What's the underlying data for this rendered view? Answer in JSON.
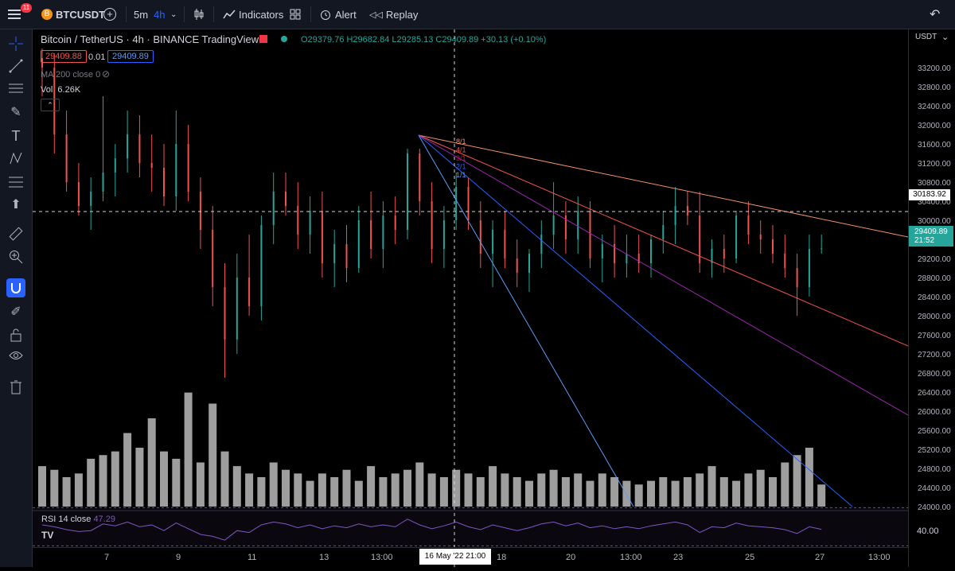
{
  "toolbar": {
    "notif_count": "11",
    "symbol": "BTCUSDT",
    "interval_a": "5m",
    "interval_b": "4h",
    "indicators": "Indicators",
    "alert": "Alert",
    "replay": "Replay"
  },
  "legend": {
    "title": "Bitcoin / TetherUS · 4h · BINANCE  TradingView",
    "ohlc": "O29379.76 H29682.84 L29285.13 C29409.89 +30.13 (+0.10%)",
    "bid": "29409.88",
    "spread": "0.01",
    "ask": "29409.89",
    "ma": "MA 200 close 0",
    "vol_label": "Vol",
    "vol_value": "6.26K",
    "rsi_label": "RSI 14 close",
    "rsi_value": "47.29",
    "rsi_axis": "40.00"
  },
  "price_axis": {
    "currency": "USDT",
    "ticks": [
      "33200.00",
      "32800.00",
      "32400.00",
      "32000.00",
      "31600.00",
      "31200.00",
      "30800.00",
      "30400.00",
      "30000.00",
      "29600.00",
      "29200.00",
      "28800.00",
      "28400.00",
      "28000.00",
      "27600.00",
      "27200.00",
      "26800.00",
      "26400.00",
      "26000.00",
      "25600.00",
      "25200.00",
      "24800.00",
      "24400.00",
      "24000.00"
    ],
    "crosshair_price": "30183.92",
    "last_price": "29409.89",
    "countdown": "21:52"
  },
  "time_axis": {
    "ticks": [
      "7",
      "9",
      "11",
      "13",
      "13:00",
      "18",
      "20",
      "13:00",
      "23",
      "25",
      "27",
      "13:00"
    ],
    "crosshair_time": "16 May '22  21:00"
  },
  "fan_labels": [
    "8/1",
    "4/1",
    "3/1",
    "2/1",
    "1/1"
  ],
  "colors": {
    "up": "#26a69a",
    "down": "#ef5350",
    "accent": "#2962ff"
  },
  "chart_data": {
    "type": "candlestick",
    "y_range": [
      23800,
      33500
    ],
    "candles": [
      [
        33400,
        33600,
        32600,
        33200
      ],
      [
        33200,
        33500,
        31400,
        31800
      ],
      [
        31800,
        32300,
        30600,
        30800
      ],
      [
        30800,
        31200,
        30100,
        30300
      ],
      [
        30300,
        30900,
        29800,
        30600
      ],
      [
        30600,
        32600,
        30400,
        31000
      ],
      [
        31000,
        31600,
        30500,
        31300
      ],
      [
        31300,
        32300,
        31000,
        31800
      ],
      [
        31800,
        32200,
        30900,
        31200
      ],
      [
        31200,
        31800,
        30600,
        31100
      ],
      [
        31100,
        31600,
        30300,
        30500
      ],
      [
        30500,
        32300,
        30200,
        31600
      ],
      [
        31600,
        32000,
        30400,
        30600
      ],
      [
        30600,
        30900,
        29400,
        29800
      ],
      [
        29800,
        30300,
        28200,
        28600
      ],
      [
        28600,
        29100,
        26700,
        27500
      ],
      [
        27500,
        29300,
        27200,
        28800
      ],
      [
        28800,
        29700,
        28000,
        28200
      ],
      [
        28200,
        30100,
        27900,
        29900
      ],
      [
        29900,
        31000,
        29500,
        30600
      ],
      [
        30600,
        31000,
        30100,
        30300
      ],
      [
        30300,
        30800,
        29400,
        29700
      ],
      [
        29700,
        30500,
        29300,
        30200
      ],
      [
        30200,
        30600,
        28800,
        29100
      ],
      [
        29100,
        29800,
        28600,
        29500
      ],
      [
        29500,
        29900,
        28700,
        29000
      ],
      [
        29000,
        30300,
        28900,
        30000
      ],
      [
        30000,
        30600,
        29200,
        29400
      ],
      [
        29400,
        30400,
        29000,
        30100
      ],
      [
        30100,
        30500,
        29500,
        29800
      ],
      [
        29800,
        31500,
        29600,
        31400
      ],
      [
        31400,
        31500,
        30100,
        30400
      ],
      [
        30400,
        30800,
        29100,
        29400
      ],
      [
        29400,
        30300,
        29000,
        30000
      ],
      [
        30000,
        31000,
        29800,
        30700
      ],
      [
        30700,
        30900,
        29800,
        30000
      ],
      [
        30000,
        30400,
        29000,
        29300
      ],
      [
        29300,
        30000,
        28600,
        29800
      ],
      [
        29800,
        30200,
        29000,
        29200
      ],
      [
        29200,
        29600,
        28600,
        28900
      ],
      [
        28900,
        29400,
        28500,
        29300
      ],
      [
        29300,
        30000,
        29000,
        29700
      ],
      [
        29700,
        30800,
        29400,
        30100
      ],
      [
        30100,
        30400,
        29300,
        29600
      ],
      [
        29600,
        30500,
        29300,
        30200
      ],
      [
        30200,
        30400,
        29000,
        29200
      ],
      [
        29200,
        29700,
        28700,
        29500
      ],
      [
        29500,
        29900,
        28800,
        29100
      ],
      [
        29100,
        29700,
        28800,
        29300
      ],
      [
        29300,
        29700,
        28900,
        29100
      ],
      [
        29100,
        29700,
        28800,
        29600
      ],
      [
        29600,
        30200,
        29300,
        29900
      ],
      [
        29900,
        30700,
        29500,
        30300
      ],
      [
        30300,
        30600,
        29900,
        30100
      ],
      [
        30100,
        30600,
        28900,
        29100
      ],
      [
        29100,
        29600,
        28800,
        29400
      ],
      [
        29400,
        29700,
        28900,
        29200
      ],
      [
        29200,
        30200,
        29100,
        30100
      ],
      [
        30100,
        30400,
        29500,
        29700
      ],
      [
        29700,
        30000,
        29300,
        29600
      ],
      [
        29600,
        29900,
        29100,
        29300
      ],
      [
        29300,
        29700,
        28800,
        29000
      ],
      [
        29000,
        29300,
        28000,
        28600
      ],
      [
        28600,
        29700,
        28400,
        29400
      ],
      [
        29400,
        29700,
        29300,
        29410
      ]
    ],
    "volume_range_k": [
      0,
      32
    ],
    "volume": [
      11,
      10,
      8,
      9,
      13,
      14,
      15,
      20,
      16,
      24,
      15,
      13,
      31,
      12,
      28,
      15,
      11,
      9,
      8,
      12,
      10,
      9,
      7,
      9,
      8,
      10,
      7,
      11,
      8,
      9,
      10,
      12,
      9,
      8,
      10,
      9,
      8,
      11,
      9,
      8,
      7,
      9,
      10,
      8,
      9,
      7,
      9,
      8,
      7,
      6,
      7,
      8,
      7,
      8,
      9,
      11,
      8,
      7,
      9,
      10,
      8,
      12,
      14,
      16,
      6
    ],
    "rsi": [
      52,
      50,
      47,
      45,
      46,
      53,
      51,
      55,
      50,
      52,
      46,
      54,
      48,
      42,
      40,
      36,
      46,
      44,
      52,
      55,
      53,
      49,
      52,
      48,
      51,
      49,
      53,
      50,
      52,
      50,
      58,
      52,
      48,
      51,
      55,
      50,
      47,
      52,
      49,
      46,
      49,
      53,
      55,
      51,
      54,
      49,
      51,
      48,
      50,
      48,
      51,
      53,
      55,
      52,
      44,
      50,
      49,
      54,
      51,
      50,
      49,
      47,
      43,
      50,
      47.29
    ]
  }
}
